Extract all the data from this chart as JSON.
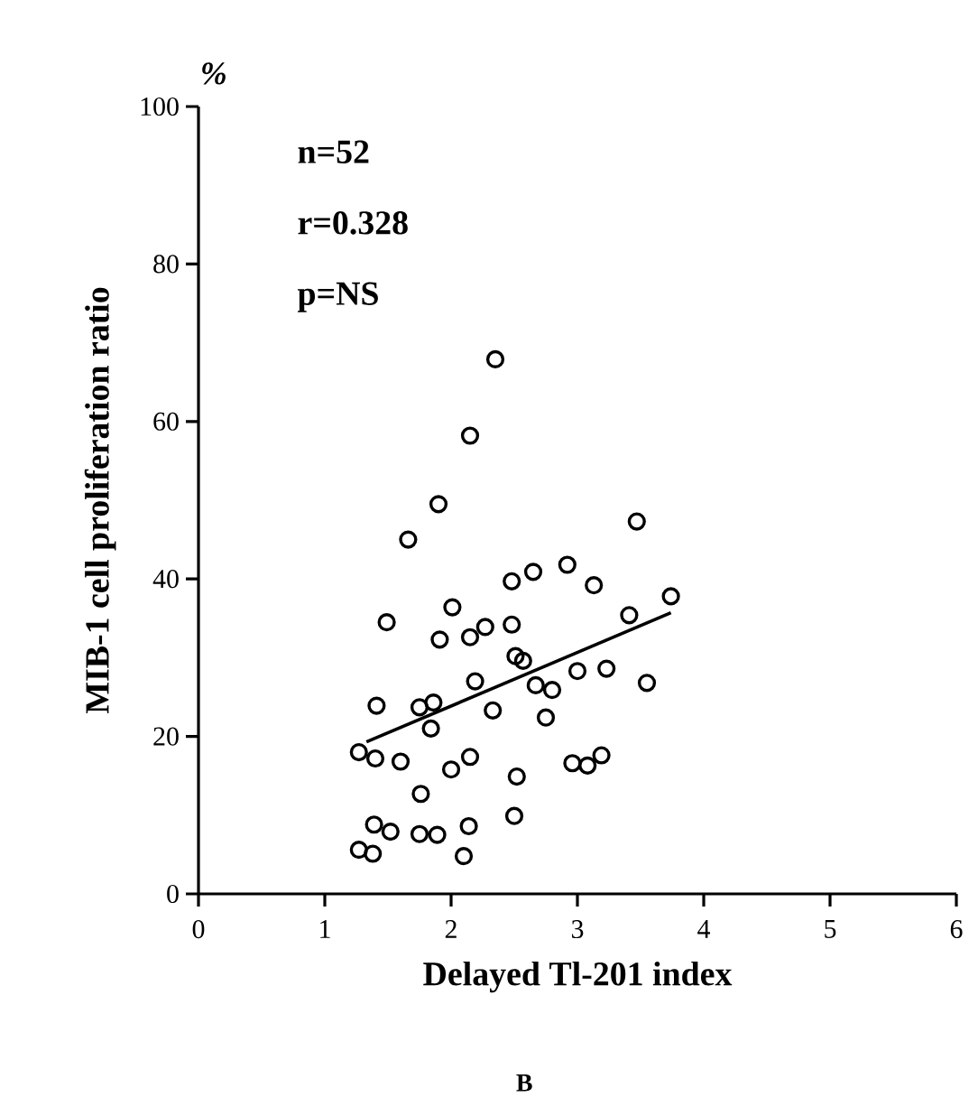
{
  "chart_data": {
    "type": "scatter",
    "xlabel": "Delayed Tl-201 index",
    "ylabel": "MIB-1 cell proliferation ratio",
    "annotations": [
      "%",
      "n=52",
      "r=0.328",
      "p=NS",
      "B"
    ],
    "xlim": [
      0,
      6
    ],
    "ylim": [
      0,
      100
    ],
    "xticks": [
      0,
      1,
      2,
      3,
      4,
      5,
      6
    ],
    "yticks": [
      0,
      20,
      40,
      60,
      80,
      100
    ],
    "grid": false,
    "marker": "circle",
    "series": [
      {
        "color": "#000000",
        "x": [
          2.35,
          2.15,
          1.9,
          1.66,
          3.47,
          2.92,
          2.65,
          2.48,
          3.13,
          3.74,
          3.41,
          1.49,
          2.01,
          2.48,
          2.27,
          2.15,
          1.91,
          2.51,
          2.57,
          2.19,
          3.0,
          3.23,
          3.55,
          2.67,
          2.8,
          1.41,
          1.75,
          1.86,
          2.33,
          2.75,
          1.84,
          1.27,
          1.4,
          1.6,
          2.15,
          2.0,
          2.96,
          3.08,
          3.19,
          2.52,
          1.76,
          2.5,
          1.39,
          1.52,
          1.75,
          1.89,
          2.14,
          1.27,
          1.38,
          2.1
        ],
        "values": [
          67.9,
          58.2,
          49.5,
          45.0,
          47.3,
          41.8,
          40.9,
          39.7,
          39.2,
          37.8,
          35.4,
          34.5,
          36.4,
          34.2,
          33.9,
          32.6,
          32.3,
          30.2,
          29.6,
          27.0,
          28.3,
          28.6,
          26.8,
          26.5,
          25.9,
          23.9,
          23.7,
          24.3,
          23.3,
          22.4,
          21.0,
          18.0,
          17.2,
          16.8,
          17.4,
          15.8,
          16.6,
          16.3,
          17.6,
          14.9,
          12.7,
          9.9,
          8.8,
          7.9,
          7.6,
          7.5,
          8.6,
          5.6,
          5.1,
          4.8
        ]
      },
      {
        "type": "line",
        "color": "#000000",
        "marker": "none",
        "line_style": "solid",
        "x": [
          1.33,
          3.74
        ],
        "values": [
          19.3,
          35.7
        ]
      }
    ]
  }
}
